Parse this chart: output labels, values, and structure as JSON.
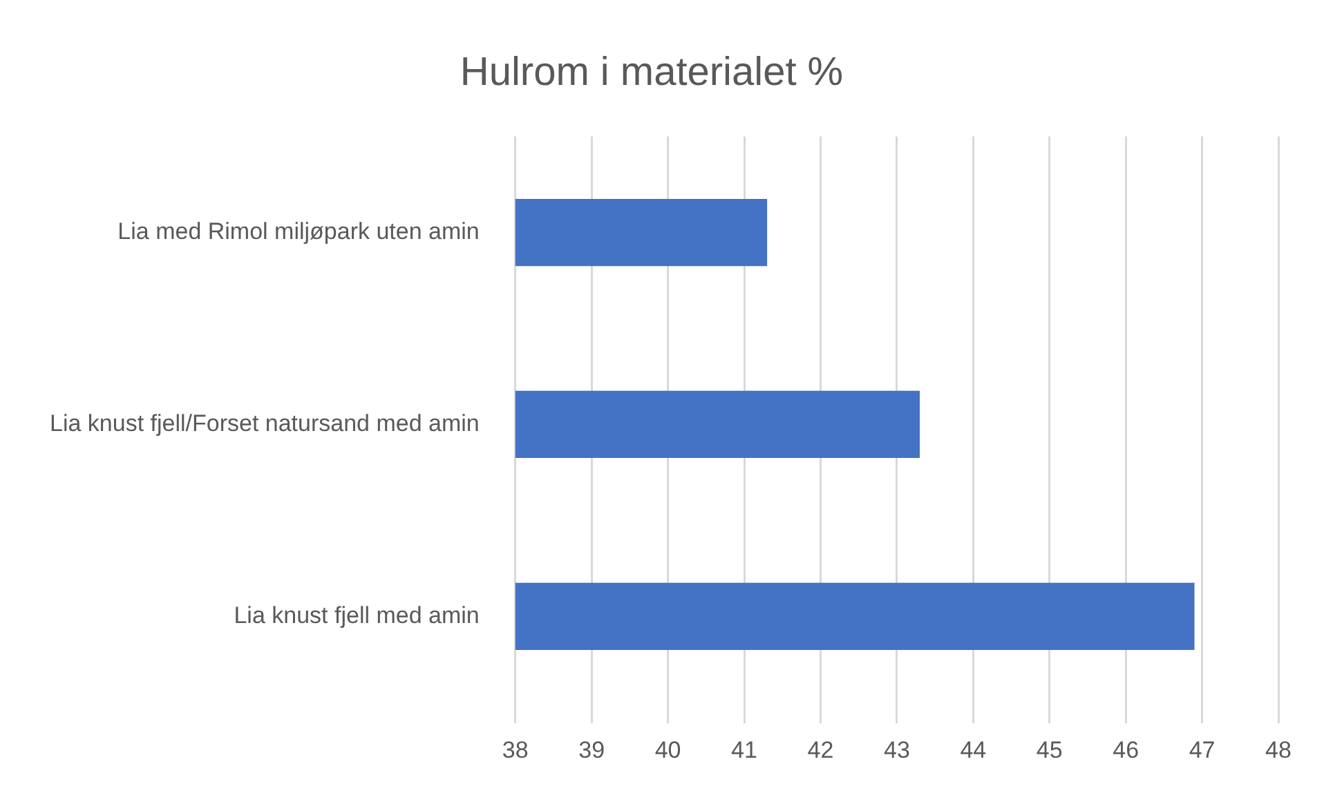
{
  "chart_data": {
    "type": "bar",
    "title": "Hulrom i materialet %",
    "orientation": "horizontal",
    "categories": [
      "Lia med Rimol miljøpark uten amin",
      "Lia knust fjell/Forset natursand med amin",
      "Lia knust fjell med amin"
    ],
    "values": [
      41.3,
      43.3,
      46.9
    ],
    "color": "#4472c4",
    "xlim": [
      38,
      48
    ],
    "xticks": [
      38,
      39,
      40,
      41,
      42,
      43,
      44,
      45,
      46,
      47,
      48
    ],
    "grid": "x",
    "legend": false
  }
}
